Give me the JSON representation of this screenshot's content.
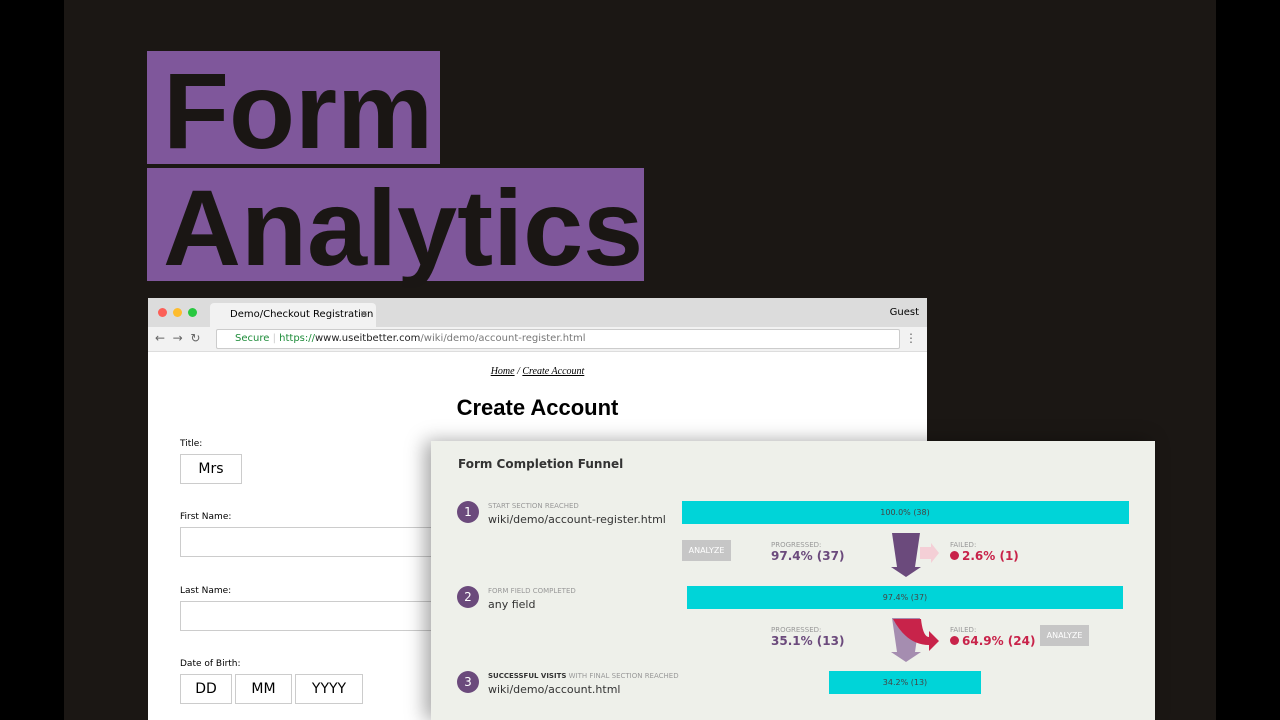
{
  "hero": {
    "line1": "Form",
    "line2": "Analytics"
  },
  "browser": {
    "tab": "Demo/Checkout Registration",
    "user": "Guest",
    "secure": "Secure",
    "url_scheme": "https://",
    "url_host": "www.useitbetter.com",
    "url_path": "/wiki/demo/account-register.html"
  },
  "page": {
    "breadcrumb_home": "Home",
    "breadcrumb_sep": "/",
    "breadcrumb_current": "Create Account",
    "heading": "Create Account",
    "fields": [
      {
        "label": "Title:",
        "value": "Mrs"
      },
      {
        "label": "First Name:"
      },
      {
        "label": "Last Name:"
      },
      {
        "label": "Date of Birth:",
        "parts": [
          "DD",
          "MM",
          "YYYY"
        ]
      }
    ]
  },
  "funnel": {
    "title": "Form Completion Funnel",
    "steps": [
      {
        "number": "1",
        "kind": "START SECTION REACHED",
        "name": "wiki/demo/account-register.html",
        "percent": 100.0,
        "label": "100.0% (38)"
      },
      {
        "number": "2",
        "kind": "FORM FIELD COMPLETED",
        "name": "any field",
        "percent": 97.4,
        "label": "97.4% (37)"
      },
      {
        "number": "3",
        "kind": "SUCCESSFUL VISITS",
        "kind_suffix": "WITH FINAL SECTION REACHED",
        "name": "wiki/demo/account.html",
        "percent": 34.2,
        "label": "34.2% (13)"
      }
    ],
    "transitions": [
      {
        "button": "ANALYZE",
        "progressed_label": "PROGRESSED:",
        "progressed": "97.4% (37)",
        "failed_label": "FAILED:",
        "failed": "2.6% (1)"
      },
      {
        "button": "ANALYZE",
        "progressed_label": "PROGRESSED:",
        "progressed": "35.1% (13)",
        "failed_label": "FAILED:",
        "failed": "64.9% (24)"
      }
    ]
  }
}
